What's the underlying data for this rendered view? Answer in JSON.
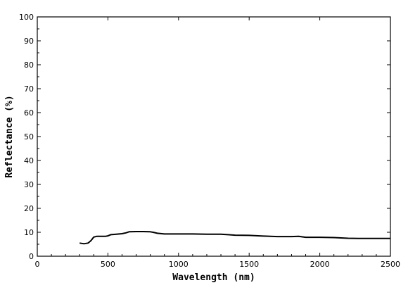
{
  "chart_data": {
    "type": "line",
    "title": "",
    "xlabel": "Wavelength (nm)",
    "ylabel": "Reflectance (%)",
    "xlim": [
      0,
      2500
    ],
    "ylim": [
      0,
      100
    ],
    "xticks": [
      0,
      500,
      1000,
      1500,
      2000,
      2500
    ],
    "yticks": [
      0,
      10,
      20,
      30,
      40,
      50,
      60,
      70,
      80,
      90,
      100
    ],
    "grid": false,
    "legend": "none",
    "series": [
      {
        "x": [
          300,
          330,
          360,
          380,
          400,
          420,
          450,
          480,
          500,
          520,
          560,
          600,
          630,
          650,
          700,
          750,
          800,
          820,
          850,
          900,
          950,
          1000,
          1100,
          1200,
          1300,
          1350,
          1400,
          1500,
          1600,
          1700,
          1800,
          1850,
          1900,
          2000,
          2100,
          2200,
          2300,
          2400,
          2500
        ],
        "y": [
          5.5,
          5.2,
          5.5,
          6.5,
          8.0,
          8.3,
          8.3,
          8.3,
          8.5,
          9.0,
          9.2,
          9.4,
          9.8,
          10.2,
          10.3,
          10.3,
          10.2,
          10.0,
          9.6,
          9.3,
          9.3,
          9.3,
          9.3,
          9.2,
          9.2,
          9.0,
          8.8,
          8.7,
          8.4,
          8.2,
          8.2,
          8.3,
          7.9,
          7.9,
          7.8,
          7.5,
          7.4,
          7.4,
          7.4
        ]
      }
    ]
  }
}
